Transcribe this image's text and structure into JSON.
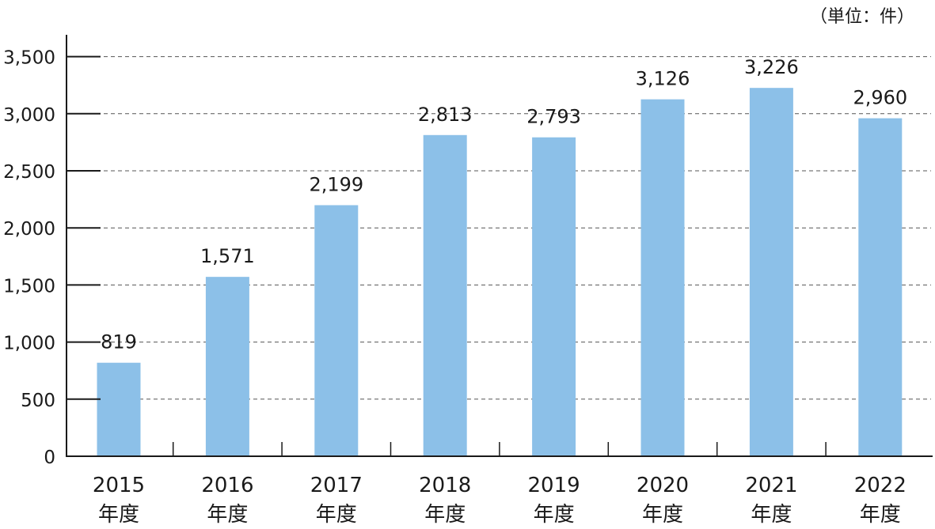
{
  "chart_data": {
    "type": "bar",
    "unit_label": "（単位：件）",
    "categories": [
      [
        "2015",
        "年度"
      ],
      [
        "2016",
        "年度"
      ],
      [
        "2017",
        "年度"
      ],
      [
        "2018",
        "年度"
      ],
      [
        "2019",
        "年度"
      ],
      [
        "2020",
        "年度"
      ],
      [
        "2021",
        "年度"
      ],
      [
        "2022",
        "年度"
      ]
    ],
    "values": [
      819,
      1571,
      2199,
      2813,
      2793,
      3126,
      3226,
      2960
    ],
    "value_labels": [
      "819",
      "1,571",
      "2,199",
      "2,813",
      "2,793",
      "3,126",
      "3,226",
      "2,960"
    ],
    "yticks": [
      0,
      500,
      1000,
      1500,
      2000,
      2500,
      3000,
      3500
    ],
    "ytick_labels": [
      "0",
      "500",
      "1,000",
      "1,500",
      "2,000",
      "2,500",
      "3,000",
      "3,500"
    ],
    "ylim": [
      0,
      3600
    ],
    "grid": "dashed horizontal",
    "colors": {
      "bar": "#8cc0e8",
      "axis": "#1a1a1a",
      "grid": "#555555"
    }
  }
}
